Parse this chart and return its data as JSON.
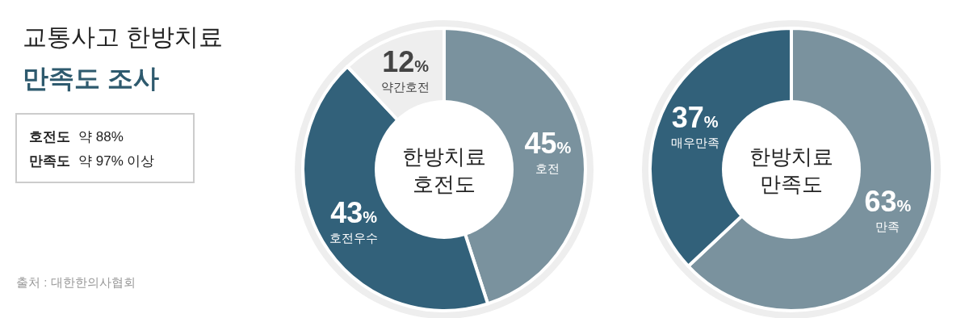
{
  "chart_data": [
    {
      "type": "other",
      "title": "교통사고 한방치료",
      "subtitle": "만족도 조사",
      "annotations": [
        "호전도 약 88%",
        "만족도 약 97% 이상",
        "출처 : 대한한의사협회"
      ]
    },
    {
      "type": "donut",
      "title": "한방치료\n호전도",
      "categories": [
        "호전",
        "호전우수",
        "약간호전"
      ],
      "values": [
        45,
        43,
        12
      ],
      "value_labels": [
        "45%",
        "43%",
        "12%"
      ],
      "colors": [
        "#7a929e",
        "#32617a",
        "#eeeeee"
      ]
    },
    {
      "type": "donut",
      "title": "한방치료\n만족도",
      "categories": [
        "만족",
        "매우만족"
      ],
      "values": [
        63,
        37
      ],
      "value_labels": [
        "63%",
        "37%"
      ],
      "colors": [
        "#7a929e",
        "#32617a"
      ]
    }
  ]
}
